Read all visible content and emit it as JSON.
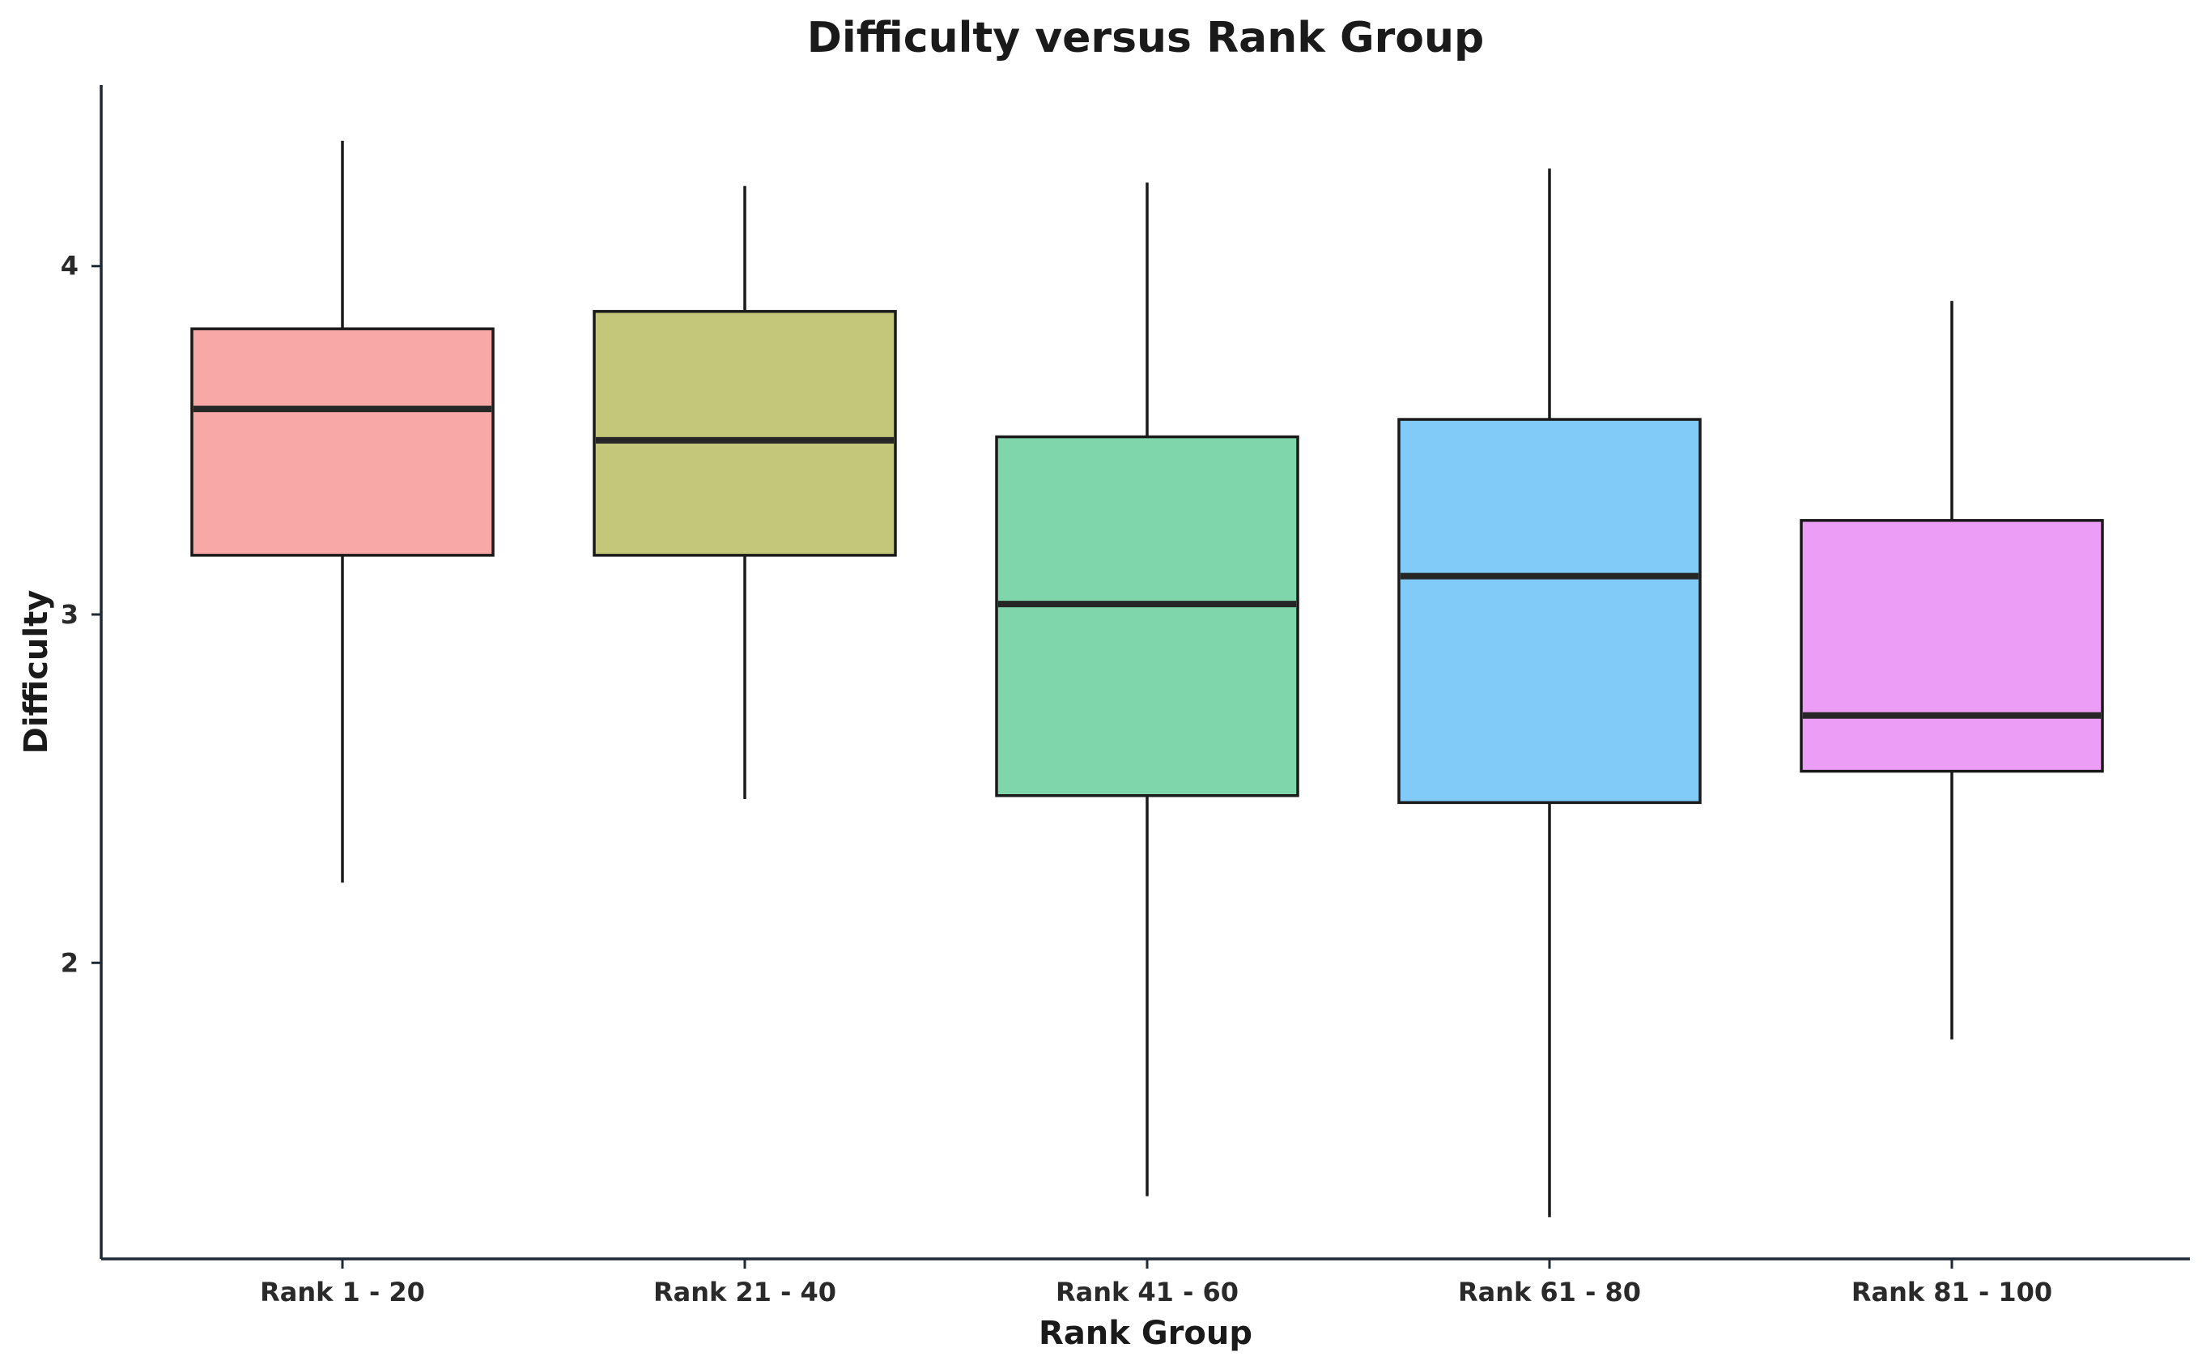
{
  "chart_data": {
    "type": "box",
    "title": "Difficulty versus Rank Group",
    "xlabel": "Rank Group",
    "ylabel": "Difficulty",
    "ylim": [
      1.15,
      4.52
    ],
    "yticks": [
      2,
      3,
      4
    ],
    "grid": false,
    "legend": "none",
    "categories": [
      "Rank 1 - 20",
      "Rank 21 - 40",
      "Rank 41 - 60",
      "Rank 61 - 80",
      "Rank 81 - 100"
    ],
    "boxes": [
      {
        "min": 2.23,
        "q1": 3.17,
        "median": 3.59,
        "q3": 3.82,
        "max": 4.36,
        "color": "#F8A8A6"
      },
      {
        "min": 2.47,
        "q1": 3.17,
        "median": 3.5,
        "q3": 3.87,
        "max": 4.23,
        "color": "#C4C77A"
      },
      {
        "min": 1.33,
        "q1": 2.48,
        "median": 3.03,
        "q3": 3.51,
        "max": 4.24,
        "color": "#80D6AB"
      },
      {
        "min": 1.27,
        "q1": 2.46,
        "median": 3.11,
        "q3": 3.56,
        "max": 4.28,
        "color": "#80CBF8"
      },
      {
        "min": 1.78,
        "q1": 2.55,
        "median": 2.71,
        "q3": 3.27,
        "max": 3.9,
        "color": "#EC9EF6"
      }
    ]
  }
}
